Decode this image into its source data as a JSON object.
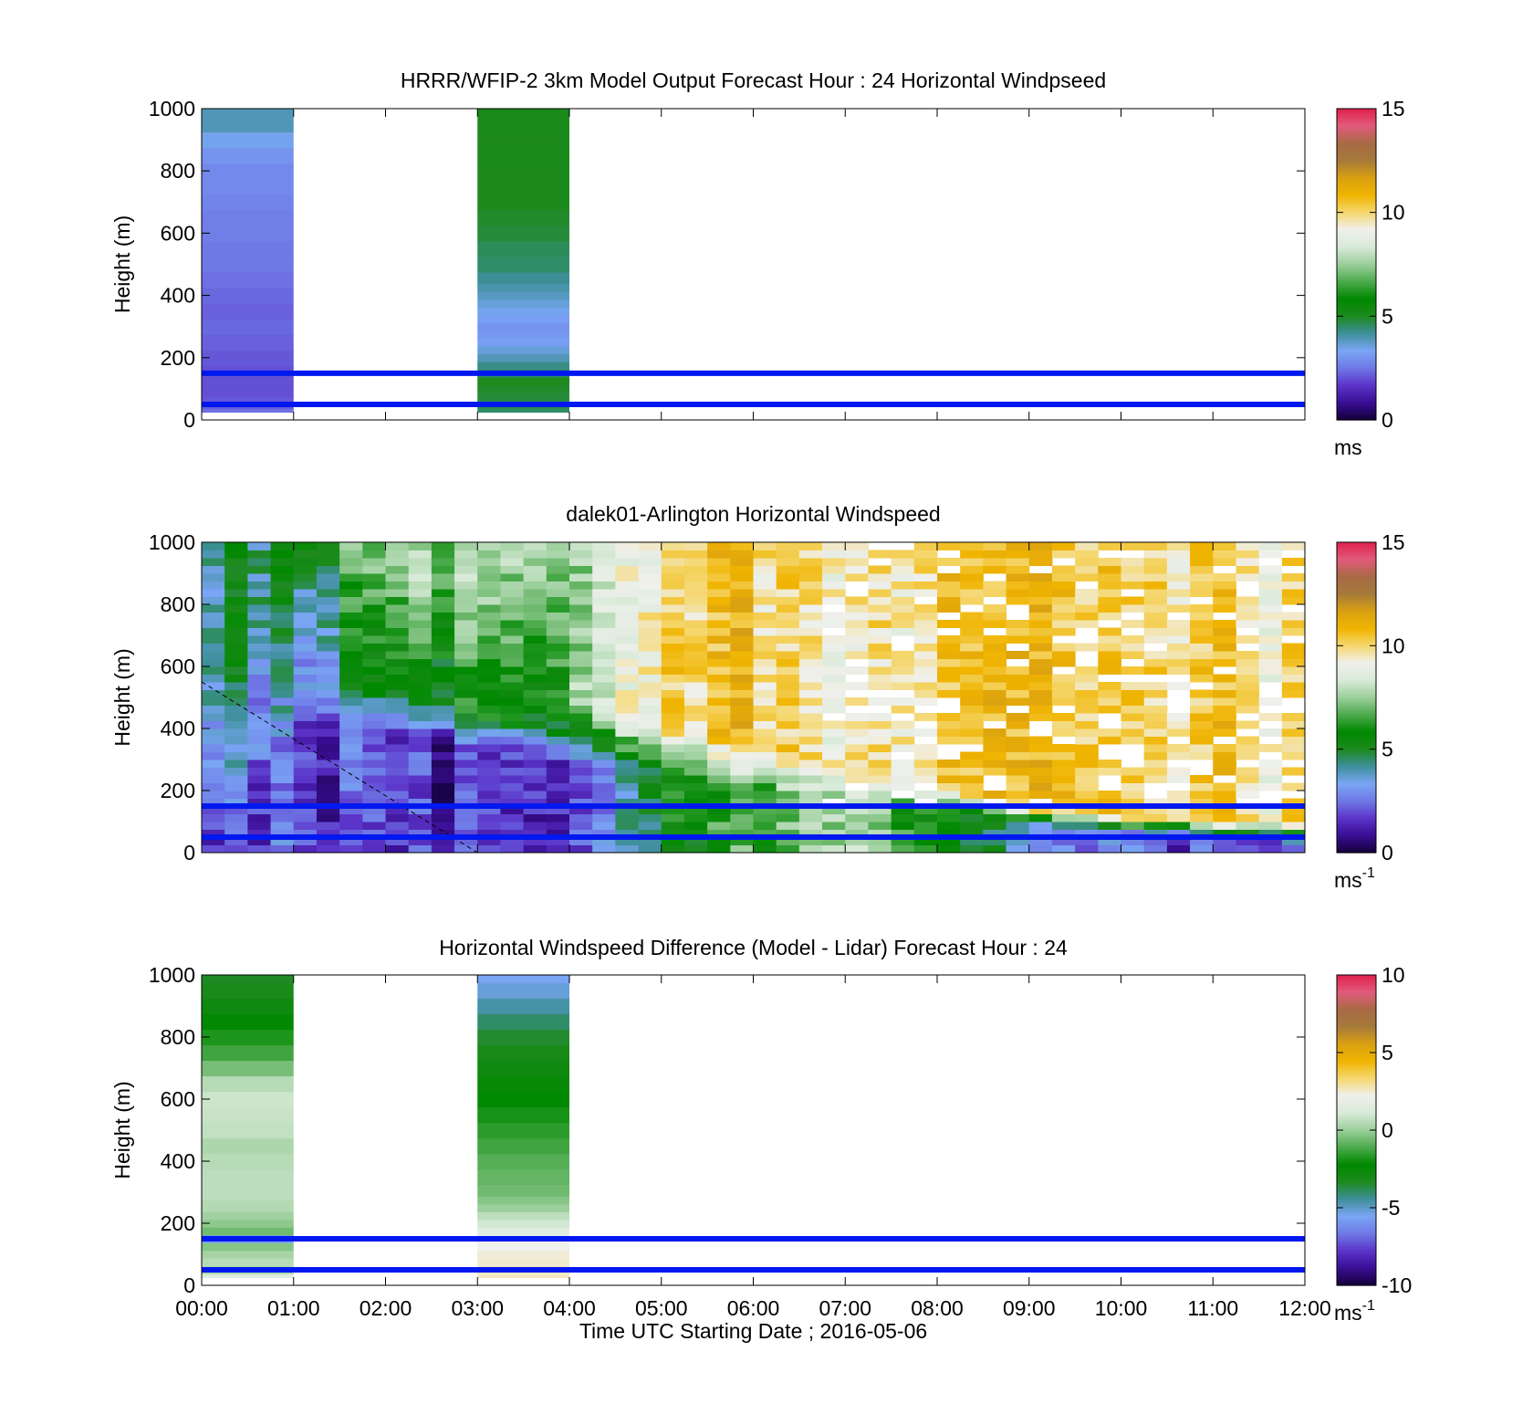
{
  "figure": {
    "xlabel": "Time UTC  Starting Date ; 2016-05-06"
  },
  "colors": {
    "reference_lines": "#0018f0",
    "colormap": [
      "#13003a",
      "#3a0e95",
      "#5b34c9",
      "#6f79e6",
      "#7aa6f5",
      "#3e8f9a",
      "#1d8a1d",
      "#008800",
      "#4daa4d",
      "#9ccf9c",
      "#d8ead8",
      "#f0f0ec",
      "#f5d76e",
      "#f0b400",
      "#d9a012",
      "#a57a3a",
      "#a86a45",
      "#e25a7c",
      "#e0204c"
    ]
  },
  "chart_data": [
    {
      "type": "heatmap",
      "title": "HRRR/WFIP-2 3km Model Output   Forecast Hour : 24 Horizontal Windpseed",
      "ylabel": "Height (m)",
      "xlim": [
        "00:00",
        "12:00"
      ],
      "ylim": [
        0,
        1000
      ],
      "yticks": [
        "0",
        "200",
        "400",
        "600",
        "800",
        "1000"
      ],
      "xticks": [
        "00:00",
        "01:00",
        "02:00",
        "03:00",
        "04:00",
        "05:00",
        "06:00",
        "07:00",
        "08:00",
        "09:00",
        "10:00",
        "11:00",
        "12:00"
      ],
      "colorbar": {
        "min": 0,
        "max": 15,
        "ticks": [
          "0",
          "5",
          "10",
          "15"
        ],
        "unit": "ms"
      },
      "reference_lines_m": [
        50,
        150
      ],
      "columns": [
        {
          "start": "00:00",
          "end": "01:00",
          "profile": [
            [
              25,
              2.4
            ],
            [
              50,
              2.1
            ],
            [
              100,
              2.0
            ],
            [
              150,
              2.0
            ],
            [
              200,
              2.1
            ],
            [
              250,
              2.2
            ],
            [
              300,
              2.3
            ],
            [
              350,
              2.2
            ],
            [
              400,
              2.3
            ],
            [
              450,
              2.4
            ],
            [
              500,
              2.5
            ],
            [
              550,
              2.5
            ],
            [
              600,
              2.6
            ],
            [
              650,
              2.6
            ],
            [
              700,
              2.7
            ],
            [
              750,
              2.8
            ],
            [
              800,
              2.8
            ],
            [
              850,
              3.0
            ],
            [
              900,
              3.4
            ],
            [
              950,
              3.9
            ],
            [
              1000,
              3.9
            ]
          ]
        },
        {
          "start": "03:00",
          "end": "04:00",
          "profile": [
            [
              25,
              4.5
            ],
            [
              50,
              4.7
            ],
            [
              75,
              4.8
            ],
            [
              100,
              4.9
            ],
            [
              125,
              5.0
            ],
            [
              150,
              4.6
            ],
            [
              175,
              4.3
            ],
            [
              200,
              3.9
            ],
            [
              225,
              3.6
            ],
            [
              250,
              3.2
            ],
            [
              275,
              3.1
            ],
            [
              300,
              3.0
            ],
            [
              325,
              3.2
            ],
            [
              350,
              3.4
            ],
            [
              375,
              3.6
            ],
            [
              400,
              3.8
            ],
            [
              425,
              4.0
            ],
            [
              450,
              4.2
            ],
            [
              500,
              4.5
            ],
            [
              550,
              4.6
            ],
            [
              600,
              4.8
            ],
            [
              650,
              4.9
            ],
            [
              700,
              5.0
            ],
            [
              750,
              5.0
            ],
            [
              800,
              5.0
            ],
            [
              850,
              5.1
            ],
            [
              900,
              5.0
            ],
            [
              950,
              5.1
            ],
            [
              1000,
              5.1
            ]
          ]
        }
      ]
    },
    {
      "type": "heatmap",
      "title": "dalek01-Arlington  Horizontal Windspeed",
      "ylabel": "Height (m)",
      "xlim": [
        "00:00",
        "12:00"
      ],
      "ylim": [
        0,
        1000
      ],
      "yticks": [
        "0",
        "200",
        "400",
        "600",
        "800",
        "1000"
      ],
      "xticks": [
        "00:00",
        "01:00",
        "02:00",
        "03:00",
        "04:00",
        "05:00",
        "06:00",
        "07:00",
        "08:00",
        "09:00",
        "10:00",
        "11:00",
        "12:00"
      ],
      "colorbar": {
        "min": 0,
        "max": 15,
        "ticks": [
          "0",
          "5",
          "10",
          "15"
        ],
        "unit": "ms",
        "unit_sup": "-1"
      },
      "reference_lines_m": [
        50,
        150
      ],
      "dashed_line": [
        [
          "00:00",
          550
        ],
        [
          "03:00",
          0
        ]
      ],
      "time_step_minutes": 15,
      "height_step_m": 25,
      "approximate_field": {
        "low_level_dip_m": [
          0,
          550,
          500,
          430,
          380,
          330,
          280,
          220,
          180,
          120,
          80,
          60,
          40
        ],
        "upper_speed_by_hour": [
          4.5,
          5.0,
          7.0,
          7.5,
          7.0,
          9.5,
          10.5,
          9.0,
          10.0,
          10.5,
          10.0,
          10.0,
          9.5
        ],
        "lower_speed_by_hour": [
          2.0,
          2.2,
          1.5,
          1.4,
          1.3,
          5.0,
          6.5,
          7.5,
          6.0,
          3.0,
          2.5,
          2.0,
          2.0
        ]
      }
    },
    {
      "type": "heatmap",
      "title": "Horizontal Windspeed Difference (Model - Lidar) Forecast Hour : 24",
      "ylabel": "Height (m)",
      "xlabel": "Time UTC  Starting Date ; 2016-05-06",
      "xlim": [
        "00:00",
        "12:00"
      ],
      "ylim": [
        0,
        1000
      ],
      "yticks": [
        "0",
        "200",
        "400",
        "600",
        "800",
        "1000"
      ],
      "xticks": [
        "00:00",
        "01:00",
        "02:00",
        "03:00",
        "04:00",
        "05:00",
        "06:00",
        "07:00",
        "08:00",
        "09:00",
        "10:00",
        "11:00",
        "12:00"
      ],
      "colorbar": {
        "min": -10,
        "max": 10,
        "ticks": [
          "-10",
          "-5",
          "0",
          "5",
          "10"
        ],
        "unit": "ms",
        "unit_sup": "-1"
      },
      "reference_lines_m": [
        50,
        150
      ],
      "columns": [
        {
          "start": "00:00",
          "end": "01:00",
          "profile": [
            [
              25,
              1.5
            ],
            [
              50,
              0.3
            ],
            [
              75,
              0.5
            ],
            [
              100,
              0.2
            ],
            [
              125,
              -0.3
            ],
            [
              150,
              -5.5
            ],
            [
              175,
              -0.6
            ],
            [
              200,
              -0.2
            ],
            [
              225,
              0.1
            ],
            [
              250,
              0.4
            ],
            [
              300,
              0.6
            ],
            [
              350,
              0.6
            ],
            [
              400,
              0.5
            ],
            [
              450,
              0.3
            ],
            [
              500,
              0.7
            ],
            [
              550,
              0.8
            ],
            [
              600,
              0.9
            ],
            [
              650,
              0.5
            ],
            [
              700,
              -0.5
            ],
            [
              750,
              -1.3
            ],
            [
              800,
              -1.8
            ],
            [
              850,
              -2.3
            ],
            [
              900,
              -2.8
            ],
            [
              950,
              -3.2
            ],
            [
              1000,
              -3.4
            ]
          ]
        },
        {
          "start": "03:00",
          "end": "04:00",
          "profile": [
            [
              25,
              2.6
            ],
            [
              50,
              2.6
            ],
            [
              75,
              2.5
            ],
            [
              100,
              2.4
            ],
            [
              125,
              2.2
            ],
            [
              150,
              2.0
            ],
            [
              175,
              1.5
            ],
            [
              200,
              1.0
            ],
            [
              225,
              0.6
            ],
            [
              250,
              0.0
            ],
            [
              275,
              -0.3
            ],
            [
              300,
              -0.6
            ],
            [
              350,
              -0.8
            ],
            [
              400,
              -1.0
            ],
            [
              450,
              -1.3
            ],
            [
              500,
              -1.6
            ],
            [
              550,
              -1.9
            ],
            [
              600,
              -2.2
            ],
            [
              650,
              -2.5
            ],
            [
              700,
              -2.8
            ],
            [
              750,
              -3.1
            ],
            [
              800,
              -3.5
            ],
            [
              850,
              -4.0
            ],
            [
              900,
              -4.6
            ],
            [
              950,
              -5.2
            ],
            [
              1000,
              -5.6
            ]
          ]
        }
      ]
    }
  ]
}
